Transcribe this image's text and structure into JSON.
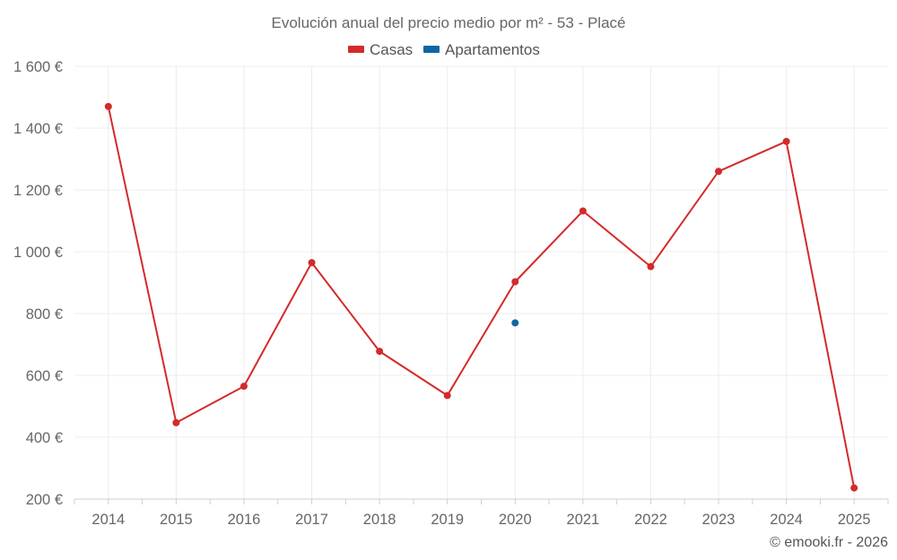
{
  "chart_data": {
    "type": "line",
    "title": "Evolución anual del precio medio por m² - 53 - Placé",
    "categories": [
      "2014",
      "2015",
      "2016",
      "2017",
      "2018",
      "2019",
      "2020",
      "2021",
      "2022",
      "2023",
      "2024",
      "2025"
    ],
    "series": [
      {
        "name": "Casas",
        "color": "#d42a2a",
        "values": [
          1470,
          447,
          565,
          965,
          678,
          535,
          903,
          1132,
          952,
          1260,
          1357,
          236
        ]
      },
      {
        "name": "Apartamentos",
        "color": "#0f66a3",
        "values": [
          null,
          null,
          null,
          null,
          null,
          null,
          770,
          null,
          null,
          null,
          null,
          null
        ]
      }
    ],
    "ylim": [
      200,
      1600
    ],
    "yticks": [
      200,
      400,
      600,
      800,
      1000,
      1200,
      1400,
      1600
    ],
    "ytick_labels": [
      "200 €",
      "400 €",
      "600 €",
      "800 €",
      "1 000 €",
      "1 200 €",
      "1 400 €",
      "1 600 €"
    ],
    "grid": true,
    "legend_position": "top-center"
  },
  "credit": "© emooki.fr - 2026"
}
